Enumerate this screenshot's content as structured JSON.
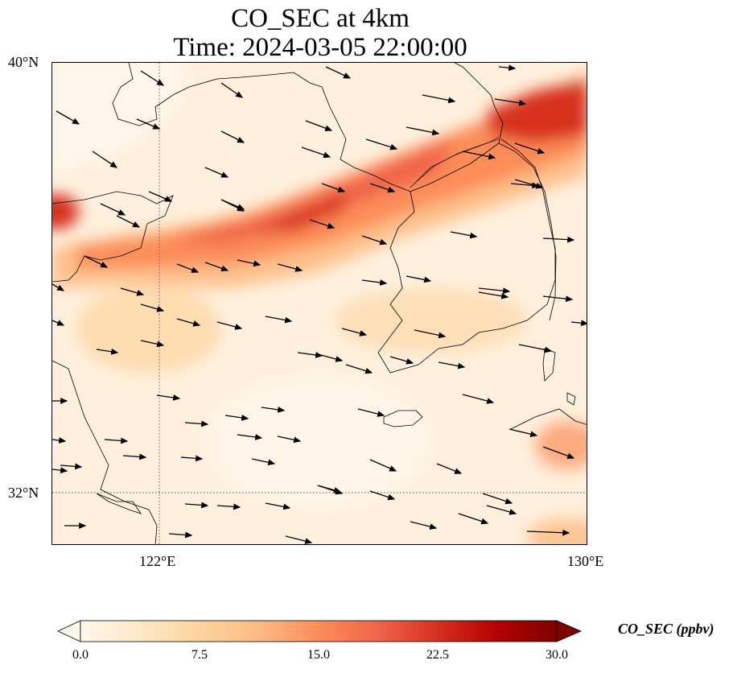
{
  "title": {
    "line1": "CO_SEC at 4km",
    "line2": "Time: 2024-03-05 22:00:00"
  },
  "map": {
    "lat_labels": [
      "40°N",
      "32°N"
    ],
    "lon_labels": [
      "122°E",
      "130°E"
    ],
    "extent": {
      "lon": [
        120,
        130
      ],
      "lat": [
        31,
        40
      ]
    },
    "gridlines": {
      "lon": [
        122,
        130
      ],
      "lat": [
        32,
        40
      ],
      "style": "dotted"
    },
    "coastline_color": "#000000"
  },
  "colorbar": {
    "label": "CO_SEC (ppbv)",
    "ticks": [
      "0.0",
      "7.5",
      "15.0",
      "22.5",
      "30.0"
    ],
    "range": [
      0,
      30
    ],
    "colormap": "OrRd",
    "extend": "both",
    "colors": [
      "#fff7ec",
      "#fee8c8",
      "#fdd49e",
      "#fdbb84",
      "#fc8d59",
      "#ef6548",
      "#d7301f",
      "#b30000",
      "#7f0000"
    ]
  }
}
